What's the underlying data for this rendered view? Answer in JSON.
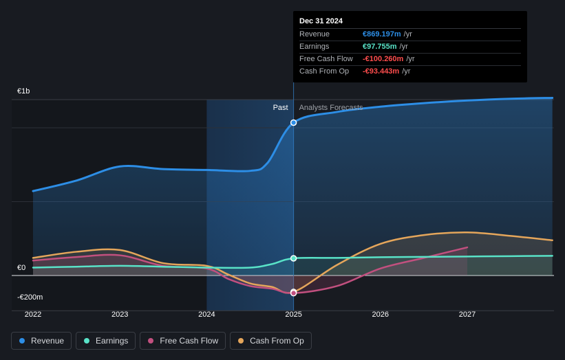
{
  "chart_data": {
    "type": "area",
    "currency": "€",
    "x_ticks": [
      "2022",
      "2023",
      "2024",
      "2025",
      "2026",
      "2027"
    ],
    "y_ticks": [
      {
        "value": 1000,
        "label": "€1b"
      },
      {
        "value": 0,
        "label": "€0"
      },
      {
        "value": -200,
        "label": "-€200m"
      }
    ],
    "ylim": [
      -200,
      1000
    ],
    "xlim": [
      2021.75,
      2027.98
    ],
    "divider_x": 2025.0,
    "highlight_range": [
      2024.0,
      2025.0
    ],
    "past_label": "Past",
    "forecast_label": "Analysts Forecasts",
    "grid": true,
    "series": [
      {
        "name": "Revenue",
        "color": "#2d8ee6",
        "points": [
          [
            2022.0,
            480
          ],
          [
            2022.5,
            540
          ],
          [
            2023.0,
            620
          ],
          [
            2023.5,
            605
          ],
          [
            2024.0,
            600
          ],
          [
            2024.5,
            595
          ],
          [
            2024.7,
            640
          ],
          [
            2025.0,
            869.197
          ],
          [
            2025.5,
            930
          ],
          [
            2026.0,
            960
          ],
          [
            2026.5,
            980
          ],
          [
            2027.0,
            995
          ],
          [
            2027.5,
            1005
          ],
          [
            2027.98,
            1010
          ]
        ]
      },
      {
        "name": "Earnings",
        "color": "#59e3c8",
        "points": [
          [
            2022.0,
            45
          ],
          [
            2022.5,
            50
          ],
          [
            2023.0,
            55
          ],
          [
            2023.5,
            50
          ],
          [
            2024.0,
            45
          ],
          [
            2024.5,
            45
          ],
          [
            2024.75,
            65
          ],
          [
            2025.0,
            97.755
          ],
          [
            2025.5,
            100
          ],
          [
            2026.0,
            104
          ],
          [
            2026.5,
            106
          ],
          [
            2027.0,
            108
          ],
          [
            2027.5,
            110
          ],
          [
            2027.98,
            112
          ]
        ]
      },
      {
        "name": "Free Cash Flow",
        "color": "#c2507f",
        "points": [
          [
            2022.0,
            85
          ],
          [
            2022.5,
            105
          ],
          [
            2023.0,
            115
          ],
          [
            2023.5,
            55
          ],
          [
            2024.0,
            40
          ],
          [
            2024.25,
            -20
          ],
          [
            2024.5,
            -60
          ],
          [
            2024.75,
            -75
          ],
          [
            2025.0,
            -100.26
          ],
          [
            2025.5,
            -60
          ],
          [
            2026.0,
            40
          ],
          [
            2026.5,
            100
          ],
          [
            2027.0,
            160
          ]
        ]
      },
      {
        "name": "Cash From Op",
        "color": "#e5a65b",
        "points": [
          [
            2022.0,
            100
          ],
          [
            2022.5,
            135
          ],
          [
            2023.0,
            145
          ],
          [
            2023.5,
            70
          ],
          [
            2024.0,
            55
          ],
          [
            2024.25,
            5
          ],
          [
            2024.5,
            -45
          ],
          [
            2024.75,
            -65
          ],
          [
            2025.0,
            -93.443
          ],
          [
            2025.5,
            60
          ],
          [
            2026.0,
            180
          ],
          [
            2026.5,
            230
          ],
          [
            2027.0,
            245
          ],
          [
            2027.5,
            225
          ],
          [
            2027.98,
            200
          ]
        ]
      }
    ],
    "tooltip": {
      "date": "Dec 31 2024",
      "rows": [
        {
          "label": "Revenue",
          "value": "€869.197m",
          "unit": "/yr",
          "color": "#2d8ee6"
        },
        {
          "label": "Earnings",
          "value": "€97.755m",
          "unit": "/yr",
          "color": "#59e3c8"
        },
        {
          "label": "Free Cash Flow",
          "value": "-€100.260m",
          "unit": "/yr",
          "color": "#ff4d4d"
        },
        {
          "label": "Cash From Op",
          "value": "-€93.443m",
          "unit": "/yr",
          "color": "#ff4d4d"
        }
      ]
    },
    "legend_position": "bottom-left"
  },
  "legend": [
    {
      "label": "Revenue",
      "color": "#2d8ee6"
    },
    {
      "label": "Earnings",
      "color": "#59e3c8"
    },
    {
      "label": "Free Cash Flow",
      "color": "#c2507f"
    },
    {
      "label": "Cash From Op",
      "color": "#e5a65b"
    }
  ]
}
